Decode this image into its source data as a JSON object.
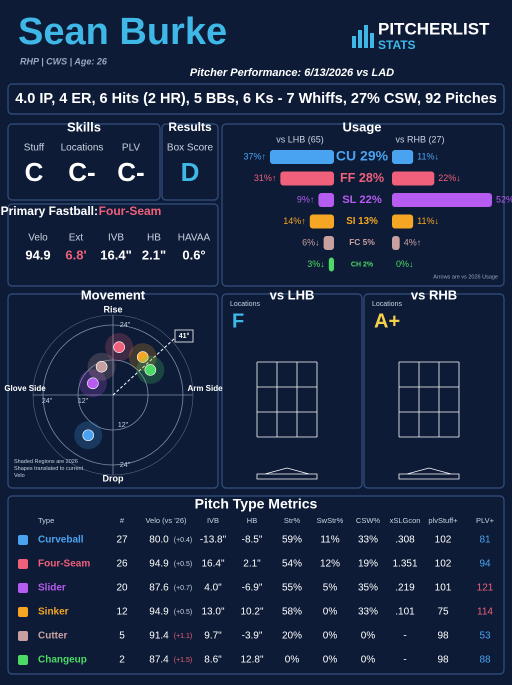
{
  "header": {
    "name": "Sean Burke",
    "info": "RHP | CWS | Age: 26",
    "logo_main": "PITCHERLIST",
    "logo_sub": "STATS",
    "performance": "Pitcher Performance: 6/13/2026 vs LAD"
  },
  "summary": "4.0 IP, 4 ER, 6 Hits (2 HR), 5 BBs, 6 Ks - 7 Whiffs, 27% CSW, 92 Pitches",
  "skills": {
    "title": "Skills",
    "labels": [
      "Stuff",
      "Locations",
      "PLV"
    ],
    "grades": [
      "C",
      "C-",
      "C-"
    ]
  },
  "results": {
    "title": "Results",
    "label": "Box Score",
    "grade": "D"
  },
  "fastball": {
    "title": "Primary Fastball:",
    "pitch": "Four-Seam",
    "labels": [
      "Velo",
      "Ext",
      "IVB",
      "HB",
      "HAVAA"
    ],
    "values": [
      "94.9",
      "6.8'",
      "16.4\"",
      "2.1\"",
      "0.6°"
    ]
  },
  "usage": {
    "title": "Usage",
    "lhb_label": "vs LHB (65)",
    "rhb_label": "vs RHB (27)",
    "note": "Arrows are vs 2026 Usage",
    "rows": [
      {
        "pitch": "CU 29%",
        "color": "#4aa3f0",
        "lhb": {
          "value": 37,
          "label": "37%↑"
        },
        "rhb": {
          "value": 11,
          "label": "11%↓"
        }
      },
      {
        "pitch": "FF 28%",
        "color": "#f0607a",
        "lhb": {
          "value": 31,
          "label": "31%↑"
        },
        "rhb": {
          "value": 22,
          "label": "22%↓"
        }
      },
      {
        "pitch": "SL 22%",
        "color": "#b65cf0",
        "lhb": {
          "value": 9,
          "label": "9%↑"
        },
        "rhb": {
          "value": 52,
          "label": "52%↑"
        }
      },
      {
        "pitch": "SI 13%",
        "color": "#f5a623",
        "lhb": {
          "value": 14,
          "label": "14%↑"
        },
        "rhb": {
          "value": 11,
          "label": "11%↓"
        }
      },
      {
        "pitch": "FC 5%",
        "color": "#c9a0a0",
        "lhb": {
          "value": 6,
          "label": "6%↓"
        },
        "rhb": {
          "value": 4,
          "label": "4%↑"
        }
      },
      {
        "pitch": "CH 2%",
        "color": "#4cd964",
        "lhb": {
          "value": 3,
          "label": "3%↓"
        },
        "rhb": {
          "value": 0,
          "label": "0%↓"
        }
      }
    ]
  },
  "movement": {
    "title": "Movement",
    "top": "Rise",
    "bottom": "Drop",
    "left": "Glove Side",
    "right": "Arm Side",
    "outer": "24\"",
    "inner": "12\"",
    "arm_angle": "41°",
    "note": "Shaded Regions are 2026 Shapes translated to current Velo"
  },
  "locations": {
    "lhb_title": "vs LHB",
    "rhb_title": "vs RHB",
    "label": "Locations",
    "lhb_grade": "F",
    "rhb_grade": "A+"
  },
  "table": {
    "title": "Pitch Type Metrics",
    "headers": [
      "Type",
      "#",
      "Velo (vs '26)",
      "IVB",
      "HB",
      "Str%",
      "SwStr%",
      "CSW%",
      "xSLGcon",
      "plvStuff+",
      "PLV+"
    ],
    "rows": [
      {
        "name": "Curveball",
        "color": "#4aa3f0",
        "count": "27",
        "velo": "80.0",
        "diff": "(+0.4)",
        "ivb": {
          "value": -13.8,
          "label": "-13.8\""
        },
        "hb": {
          "value": -8.5,
          "label": "-8.5\""
        },
        "str": "59%",
        "swstr": "11%",
        "csw": "33%",
        "xslg": ".308",
        "stuff": "102",
        "plv": 81
      },
      {
        "name": "Four-Seam",
        "color": "#f0607a",
        "count": "26",
        "velo": "94.9",
        "diff": "(+0.5)",
        "ivb": {
          "value": 16.4,
          "label": "16.4\""
        },
        "hb": {
          "value": 2.1,
          "label": "2.1\""
        },
        "str": "54%",
        "swstr": "12%",
        "csw": "19%",
        "xslg": "1.351",
        "stuff": "102",
        "plv": 94
      },
      {
        "name": "Slider",
        "color": "#b65cf0",
        "count": "20",
        "velo": "87.6",
        "diff": "(+0.7)",
        "ivb": {
          "value": 4.0,
          "label": "4.0\""
        },
        "hb": {
          "value": -6.9,
          "label": "-6.9\""
        },
        "str": "55%",
        "swstr": "5%",
        "csw": "35%",
        "xslg": ".219",
        "stuff": "101",
        "plv": 121
      },
      {
        "name": "Sinker",
        "color": "#f5a623",
        "count": "12",
        "velo": "94.9",
        "diff": "(+0.5)",
        "ivb": {
          "value": 13.0,
          "label": "13.0\""
        },
        "hb": {
          "value": 10.2,
          "label": "10.2\""
        },
        "str": "58%",
        "swstr": "0%",
        "csw": "33%",
        "xslg": ".101",
        "stuff": "75",
        "plv": 114
      },
      {
        "name": "Cutter",
        "color": "#c9a0a0",
        "count": "5",
        "velo": "91.4",
        "diff": "(+1.1)",
        "ivb": {
          "value": 9.7,
          "label": "9.7\""
        },
        "hb": {
          "value": -3.9,
          "label": "-3.9\""
        },
        "str": "20%",
        "swstr": "0%",
        "csw": "0%",
        "xslg": "-",
        "stuff": "98",
        "plv": 53
      },
      {
        "name": "Changeup",
        "color": "#4cd964",
        "count": "2",
        "velo": "87.4",
        "diff": "(+1.5)",
        "ivb": {
          "value": 8.6,
          "label": "8.6\""
        },
        "hb": {
          "value": 12.8,
          "label": "12.8\""
        },
        "str": "0%",
        "swstr": "0%",
        "csw": "0%",
        "xslg": "-",
        "stuff": "98",
        "plv": 88
      }
    ]
  }
}
